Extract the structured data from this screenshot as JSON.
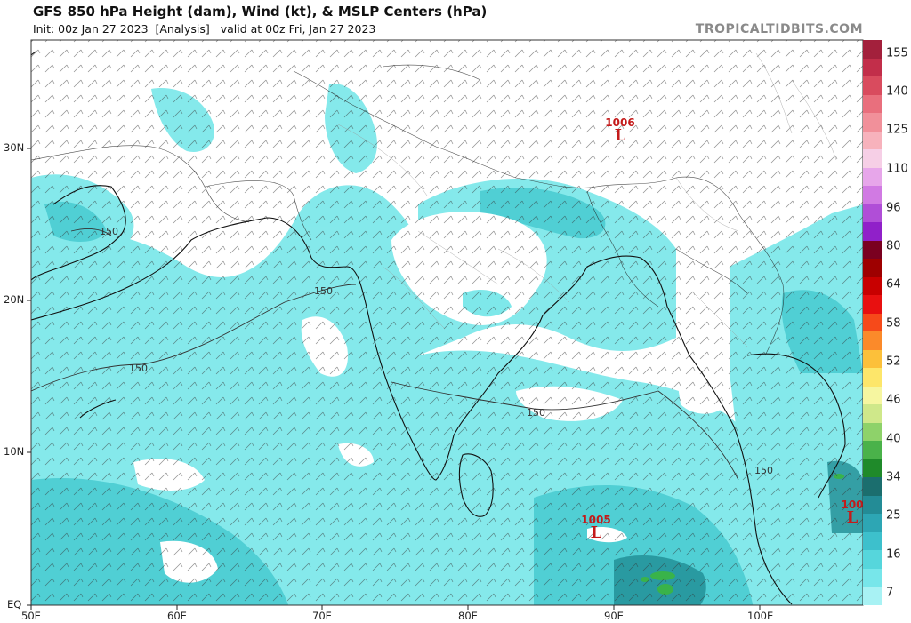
{
  "header": {
    "title": "GFS 850 hPa Height (dam), Wind (kt), & MSLP Centers (hPa)",
    "init": "Init: 00z Jan 27 2023",
    "analysis": "[Analysis]",
    "valid": "valid at 00z Fri, Jan 27 2023",
    "brand": "TROPICALTIDBITS.COM"
  },
  "lat_labels": [
    "30N",
    "20N",
    "10N",
    "EQ"
  ],
  "lon_labels": [
    "50E",
    "60E",
    "70E",
    "80E",
    "90E",
    "100E"
  ],
  "colorbar": {
    "labels": [
      "155",
      "140",
      "125",
      "110",
      "96",
      "80",
      "64",
      "58",
      "52",
      "46",
      "40",
      "34",
      "25",
      "16",
      "7"
    ],
    "colors": [
      "#a3203c",
      "#c22e4a",
      "#d94b5e",
      "#e96f7d",
      "#f1909a",
      "#f7b2bc",
      "#f6cfe6",
      "#e7a6ea",
      "#d17ae3",
      "#b04ed7",
      "#9020c9",
      "#7a0020",
      "#9e0000",
      "#c80000",
      "#e81010",
      "#f64a1a",
      "#fb8a2a",
      "#fcc03a",
      "#fde66a",
      "#f6f6a0",
      "#cfe88a",
      "#8ed26a",
      "#4ab24a",
      "#1f8a2a",
      "#1b6e6e",
      "#238c96",
      "#2da6b4",
      "#3dc0cc",
      "#56d6dc",
      "#77e6ea",
      "#a8f2f4"
    ]
  },
  "lows": [
    {
      "value": "1006",
      "symbol": "L"
    },
    {
      "value": "1005",
      "symbol": "L"
    },
    {
      "value": "100",
      "symbol": "L"
    }
  ],
  "contour_labels": [
    "150",
    "150",
    "150",
    "150",
    "150"
  ]
}
